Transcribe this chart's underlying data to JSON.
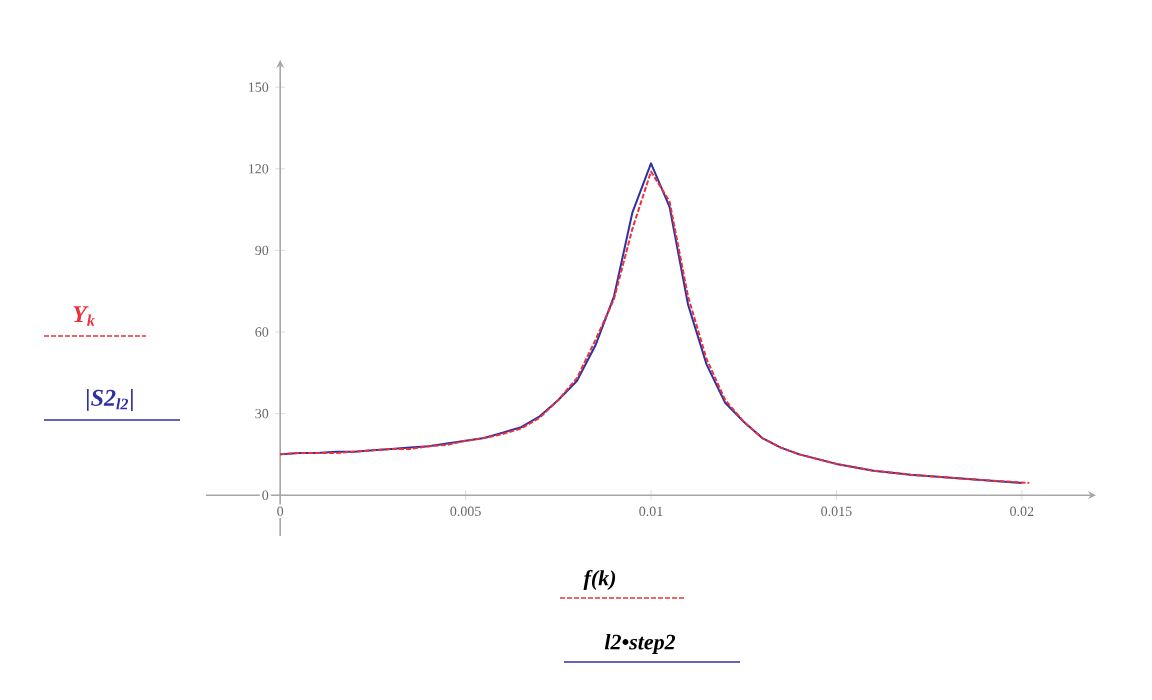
{
  "chart_data": {
    "type": "line",
    "xlabel": "f(k)",
    "annotations": [
      "l2•step2"
    ],
    "xlim": [
      -0.002,
      0.022
    ],
    "ylim": [
      -15,
      160
    ],
    "xticks": [
      0,
      0.005,
      0.01,
      0.015,
      0.02
    ],
    "yticks": [
      0,
      30,
      60,
      90,
      120,
      150
    ],
    "grid": false,
    "marker": "none",
    "series": [
      {
        "name": "Y$_{k}$",
        "color": "#e8323c",
        "line_style": "dashed",
        "x": [
          0,
          0.0005,
          0.001,
          0.0015,
          0.002,
          0.0025,
          0.003,
          0.0035,
          0.004,
          0.0045,
          0.005,
          0.0055,
          0.006,
          0.0065,
          0.007,
          0.0075,
          0.008,
          0.0085,
          0.009,
          0.0095,
          0.01,
          0.0105,
          0.011,
          0.0115,
          0.012,
          0.0125,
          0.013,
          0.0135,
          0.014,
          0.015,
          0.016,
          0.017,
          0.018,
          0.019,
          0.0202
        ],
        "values": [
          15,
          15.5,
          15.5,
          15.5,
          16,
          16.5,
          17,
          17,
          18,
          18.5,
          20,
          21,
          22.5,
          24.5,
          28.5,
          35,
          43,
          57,
          72,
          98,
          119,
          108,
          73,
          50,
          35,
          27,
          21,
          17.5,
          15,
          11.5,
          9,
          7.5,
          6.5,
          5.5,
          4.5
        ]
      },
      {
        "name": "|S2$_{l2}$|",
        "color": "#3030a0",
        "line_style": "solid",
        "x": [
          0,
          0.0005,
          0.001,
          0.0015,
          0.002,
          0.0025,
          0.003,
          0.0035,
          0.004,
          0.0045,
          0.005,
          0.0055,
          0.006,
          0.0065,
          0.007,
          0.0075,
          0.008,
          0.0085,
          0.009,
          0.0095,
          0.01,
          0.0105,
          0.011,
          0.0115,
          0.012,
          0.0125,
          0.013,
          0.0135,
          0.014,
          0.015,
          0.016,
          0.017,
          0.018,
          0.019,
          0.02
        ],
        "values": [
          15,
          15.5,
          15.5,
          16,
          16,
          16.5,
          17,
          17.5,
          18,
          19,
          20,
          21,
          23,
          25,
          29,
          35,
          42,
          55,
          73,
          104,
          122,
          106,
          70,
          48,
          34,
          27,
          21,
          17.5,
          15,
          11.5,
          9,
          7.5,
          6.5,
          5.5,
          4.5
        ]
      }
    ]
  }
}
